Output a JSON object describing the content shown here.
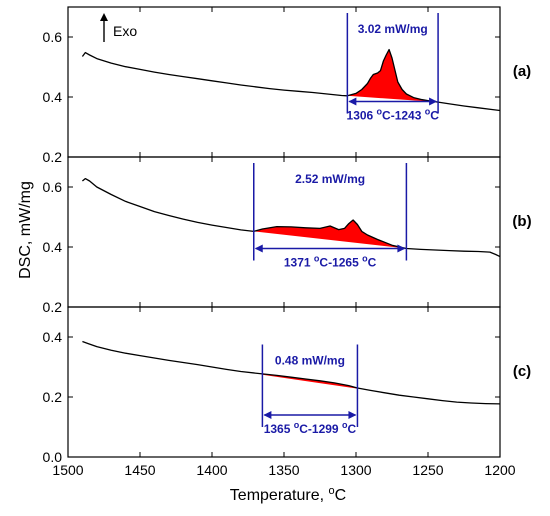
{
  "chart_data": {
    "type": "line",
    "xlabel_text": "Temperature, ",
    "xlabel_unit": "C",
    "ylabel": "DSC, mW/mg",
    "xlim": [
      1500,
      1200
    ],
    "x_ticks": [
      "1500",
      "1450",
      "1400",
      "1350",
      "1300",
      "1250",
      "1200"
    ],
    "x_tick_values": [
      1500,
      1450,
      1400,
      1350,
      1300,
      1250,
      1200
    ],
    "exo_label": "Exo",
    "panels": [
      {
        "label": "(a)",
        "ylim": [
          0.2,
          0.7
        ],
        "y_tick_values": [
          0.2,
          0.4,
          0.6
        ],
        "y_ticks": [
          "0.2",
          "0.4",
          "0.6"
        ],
        "series": {
          "x": [
            1490,
            1488,
            1485,
            1480,
            1470,
            1460,
            1450,
            1440,
            1430,
            1420,
            1410,
            1400,
            1390,
            1380,
            1370,
            1360,
            1350,
            1340,
            1330,
            1320,
            1310,
            1306,
            1300,
            1296,
            1292,
            1290,
            1288,
            1285,
            1283,
            1281,
            1279,
            1277,
            1275,
            1273,
            1271,
            1268,
            1265,
            1260,
            1255,
            1250,
            1243,
            1235,
            1225,
            1215,
            1205,
            1200
          ],
          "y": [
            0.535,
            0.548,
            0.54,
            0.528,
            0.513,
            0.501,
            0.492,
            0.483,
            0.475,
            0.468,
            0.461,
            0.454,
            0.447,
            0.44,
            0.434,
            0.428,
            0.423,
            0.419,
            0.415,
            0.41,
            0.405,
            0.404,
            0.412,
            0.425,
            0.445,
            0.462,
            0.475,
            0.48,
            0.488,
            0.52,
            0.54,
            0.558,
            0.53,
            0.49,
            0.45,
            0.425,
            0.41,
            0.398,
            0.392,
            0.388,
            0.383,
            0.377,
            0.37,
            0.364,
            0.358,
            0.355
          ]
        },
        "peak": {
          "start": 1306,
          "end": 1243,
          "baseline_start": 0.404,
          "baseline_end": 0.383
        },
        "annotation": {
          "value": "3.02 mW/mg",
          "range_start": "1306 ",
          "range_mid": "C-1243 ",
          "range_end": "C",
          "arrow_y": 0.385,
          "bracket_top": 0.68
        }
      },
      {
        "label": "(b)",
        "ylim": [
          0.2,
          0.7
        ],
        "y_tick_values": [
          0.2,
          0.4,
          0.6
        ],
        "y_ticks": [
          "0.2",
          "0.4",
          "0.6"
        ],
        "series": {
          "x": [
            1490,
            1488,
            1485,
            1480,
            1470,
            1460,
            1450,
            1440,
            1430,
            1420,
            1410,
            1400,
            1390,
            1380,
            1371,
            1365,
            1355,
            1345,
            1335,
            1325,
            1318,
            1312,
            1308,
            1305,
            1302,
            1299,
            1296,
            1292,
            1285,
            1275,
            1265,
            1255,
            1245,
            1235,
            1225,
            1215,
            1207,
            1203,
            1200
          ],
          "y": [
            0.62,
            0.628,
            0.62,
            0.6,
            0.575,
            0.552,
            0.535,
            0.518,
            0.505,
            0.493,
            0.482,
            0.473,
            0.465,
            0.457,
            0.452,
            0.46,
            0.468,
            0.467,
            0.464,
            0.462,
            0.47,
            0.458,
            0.462,
            0.478,
            0.49,
            0.475,
            0.452,
            0.44,
            0.425,
            0.406,
            0.395,
            0.392,
            0.39,
            0.388,
            0.386,
            0.385,
            0.383,
            0.375,
            0.368
          ]
        },
        "peak": {
          "start": 1371,
          "end": 1265,
          "baseline_start": 0.452,
          "baseline_end": 0.395
        },
        "annotation": {
          "value": "2.52 mW/mg",
          "range_start": "1371 ",
          "range_mid": "C-1265 ",
          "range_end": "C",
          "arrow_y": 0.395,
          "bracket_top": 0.68
        }
      },
      {
        "label": "(c)",
        "ylim": [
          0.0,
          0.5
        ],
        "y_tick_values": [
          0.0,
          0.2,
          0.4
        ],
        "y_ticks": [
          "0.0",
          "0.2",
          "0.4"
        ],
        "series": {
          "x": [
            1490,
            1486,
            1480,
            1470,
            1460,
            1450,
            1440,
            1430,
            1420,
            1410,
            1400,
            1390,
            1380,
            1365,
            1355,
            1345,
            1335,
            1325,
            1315,
            1305,
            1299,
            1290,
            1280,
            1270,
            1260,
            1250,
            1240,
            1230,
            1220,
            1210,
            1200
          ],
          "y": [
            0.385,
            0.378,
            0.368,
            0.356,
            0.346,
            0.338,
            0.33,
            0.322,
            0.315,
            0.308,
            0.3,
            0.292,
            0.285,
            0.277,
            0.272,
            0.266,
            0.26,
            0.254,
            0.247,
            0.238,
            0.23,
            0.222,
            0.214,
            0.206,
            0.2,
            0.194,
            0.188,
            0.183,
            0.18,
            0.178,
            0.177
          ]
        },
        "peak": {
          "start": 1365,
          "end": 1299,
          "baseline_start": 0.274,
          "baseline_end": 0.228
        },
        "annotation": {
          "value": "0.48 mW/mg",
          "range_start": "1365 ",
          "range_mid": "C-1299 ",
          "range_end": "C",
          "arrow_y": 0.14,
          "bracket_top": 0.375
        }
      }
    ],
    "colors": {
      "line": "#000000",
      "fill": "#ff0000",
      "annotation": "#1a1aa6"
    }
  }
}
